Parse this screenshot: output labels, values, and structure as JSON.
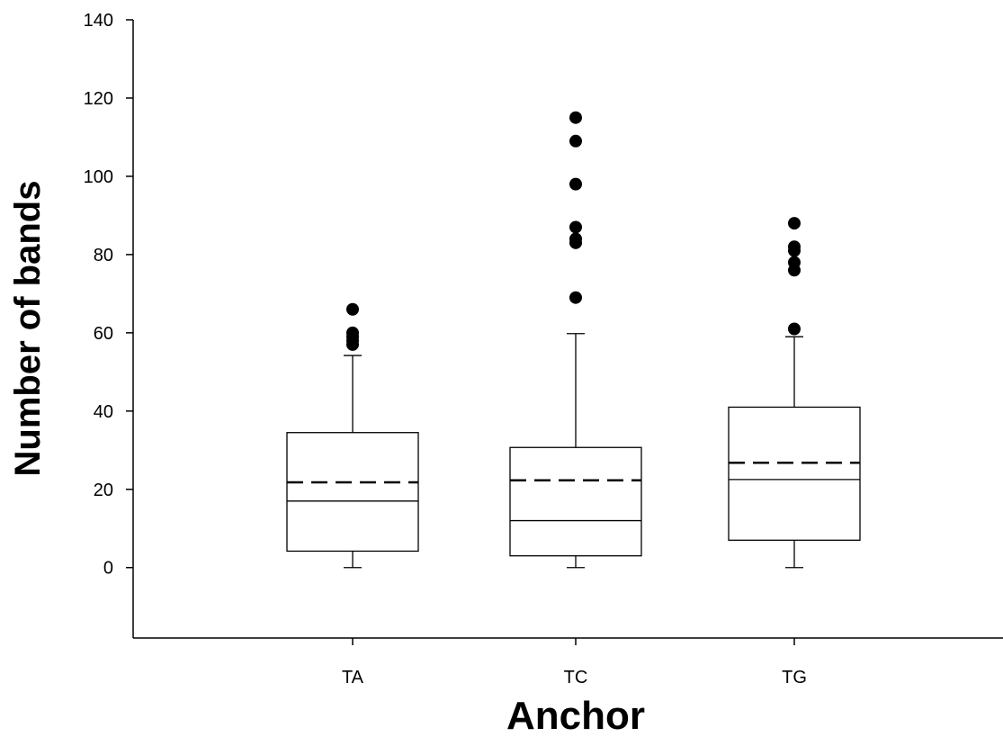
{
  "chart_data": {
    "type": "box",
    "xlabel": "Anchor",
    "ylabel": "Number of bands",
    "ylim": [
      -18,
      140
    ],
    "yticks": [
      0,
      20,
      40,
      60,
      80,
      100,
      120,
      140
    ],
    "categories": [
      "TA",
      "TC",
      "TG"
    ],
    "boxes": [
      {
        "category": "TA",
        "whisker_low": 0,
        "q1": 4.2,
        "median": 17,
        "mean": 21.8,
        "q3": 34.5,
        "whisker_high": 54.2,
        "outliers": [
          57,
          58,
          59,
          60,
          66
        ]
      },
      {
        "category": "TC",
        "whisker_low": 0,
        "q1": 3,
        "median": 12,
        "mean": 22.3,
        "q3": 30.7,
        "whisker_high": 59.8,
        "outliers": [
          69,
          83,
          84,
          87,
          98,
          109,
          115
        ]
      },
      {
        "category": "TG",
        "whisker_low": 0,
        "q1": 7,
        "median": 22.5,
        "mean": 26.8,
        "q3": 41,
        "whisker_high": 59,
        "outliers": [
          61,
          76,
          78,
          81,
          82,
          88
        ]
      }
    ],
    "legend": "none",
    "grid": false
  }
}
